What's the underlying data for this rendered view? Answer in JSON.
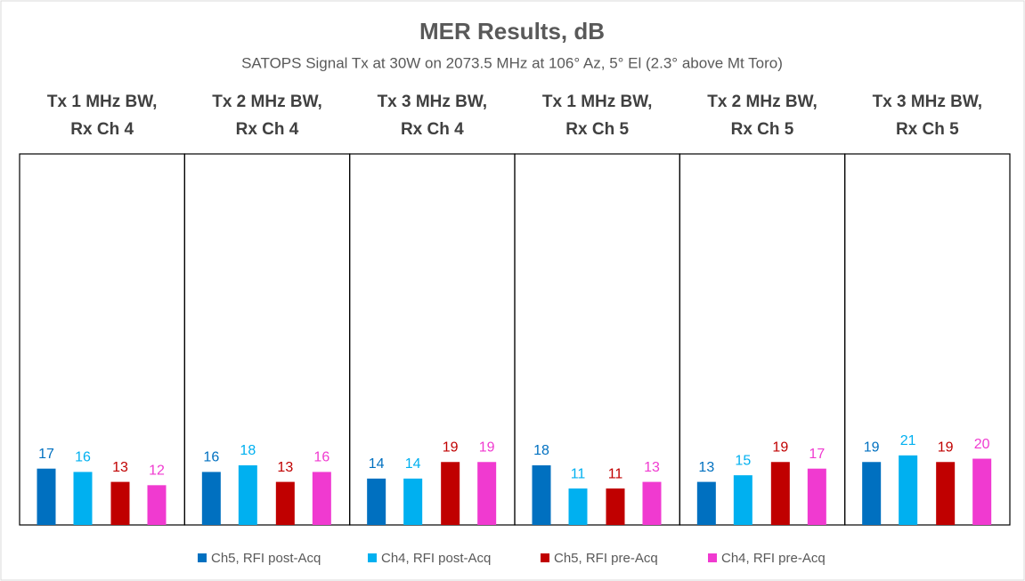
{
  "chart_data": {
    "type": "bar",
    "title": "MER Results, dB",
    "subtitle": "SATOPS Signal Tx at 30W on 2073.5 MHz at 106° Az, 5° El (2.3° above Mt Toro)",
    "categories": [
      "Tx 1 MHz BW,\nRx Ch 4",
      "Tx 2 MHz BW,\nRx Ch 4",
      "Tx 3 MHz BW,\nRx Ch 4",
      "Tx 1 MHz BW,\nRx Ch 5",
      "Tx 2 MHz BW,\nRx Ch 5",
      "Tx 3 MHz BW,\nRx Ch 5"
    ],
    "series": [
      {
        "name": "Ch5, RFI post-Acq",
        "color": "#0070c0",
        "values": [
          17,
          16,
          14,
          18,
          13,
          19
        ]
      },
      {
        "name": "Ch4, RFI post-Acq",
        "color": "#00b0f0",
        "values": [
          16,
          18,
          14,
          11,
          15,
          21
        ]
      },
      {
        "name": "Ch5, RFI pre-Acq",
        "color": "#c00000",
        "values": [
          13,
          13,
          19,
          11,
          19,
          19
        ]
      },
      {
        "name": "Ch4, RFI pre-Acq",
        "color": "#f03ad0",
        "values": [
          12,
          16,
          19,
          13,
          17,
          20
        ]
      }
    ],
    "ylim": [
      0,
      112
    ],
    "legend": "bottom"
  }
}
